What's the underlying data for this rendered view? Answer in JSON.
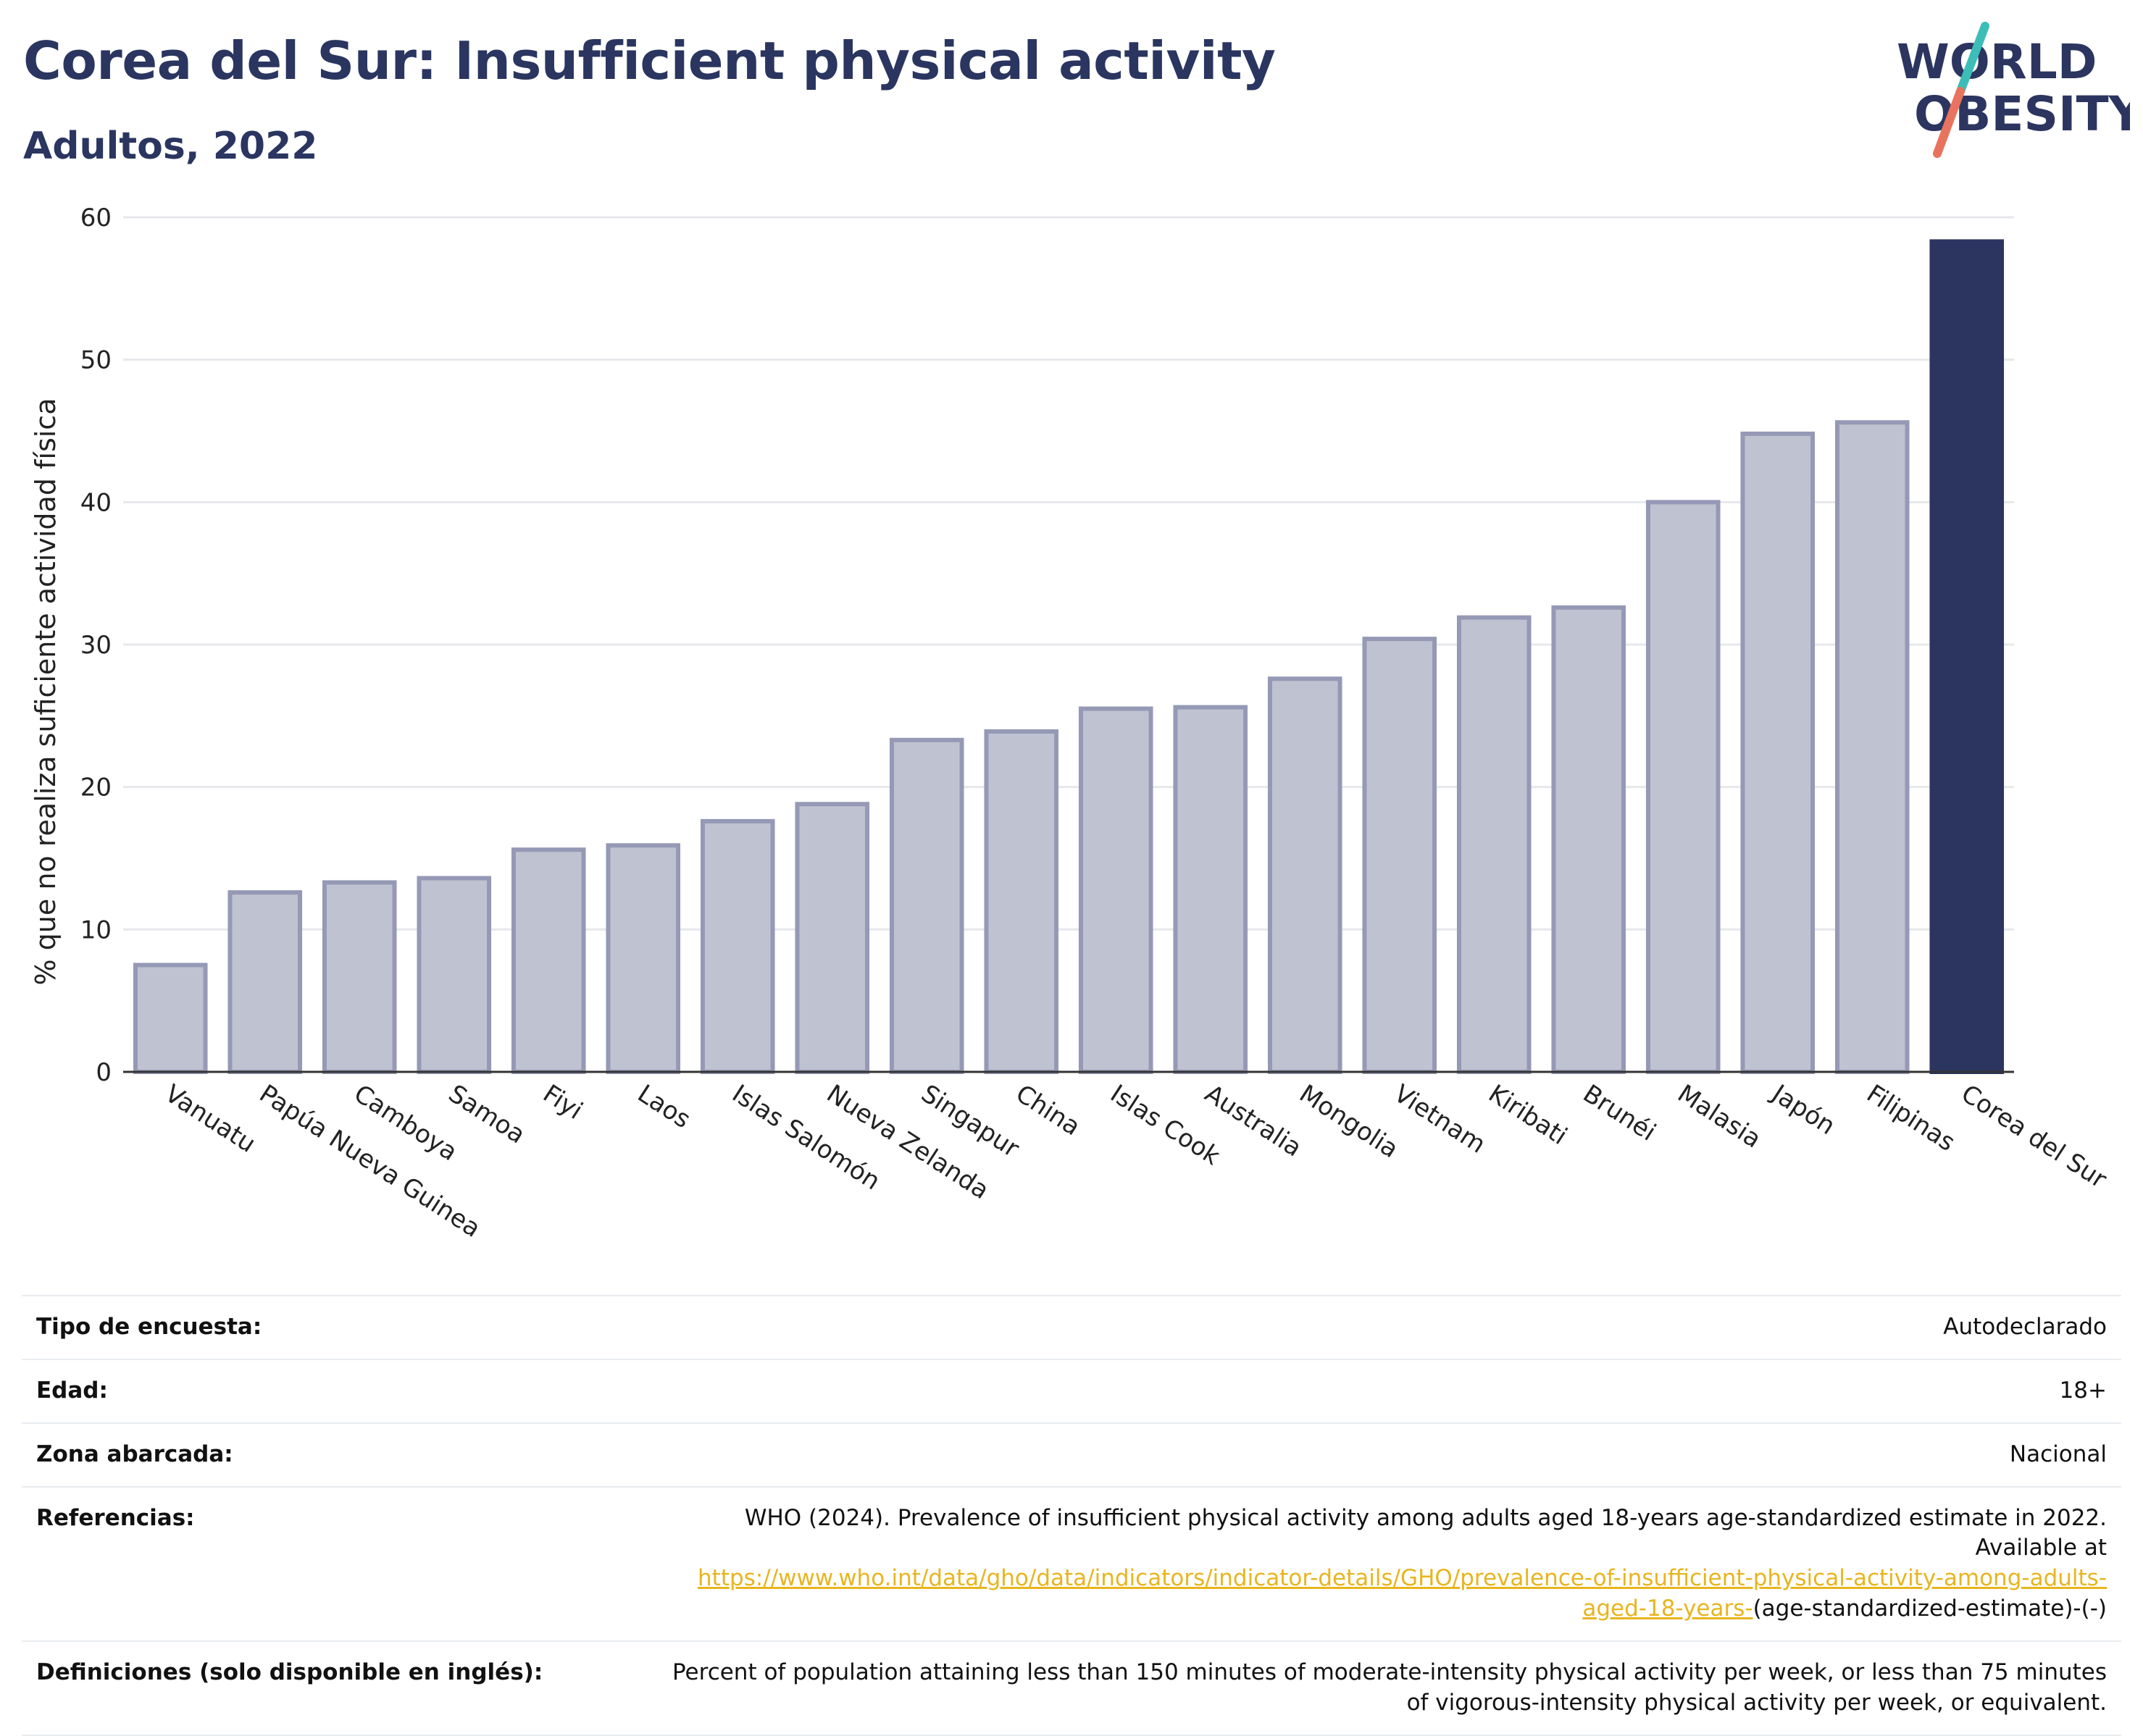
{
  "header": {
    "title": "Corea del Sur: Insufficient physical activity",
    "subtitle": "Adultos, 2022",
    "logo_line1": "WORLD",
    "logo_line2": "OBESITY"
  },
  "chart_data": {
    "type": "bar",
    "title": "Corea del Sur: Insufficient physical activity",
    "subtitle": "Adultos, 2022",
    "xlabel": "",
    "ylabel": "% que no realiza suficiente actividad física",
    "ylim": [
      0,
      60
    ],
    "yticks": [
      0,
      10,
      20,
      30,
      40,
      50,
      60
    ],
    "grid": true,
    "categories": [
      "Vanuatu",
      "Papúa Nueva Guinea",
      "Camboya",
      "Samoa",
      "Fiyi",
      "Laos",
      "Islas Salomón",
      "Nueva Zelanda",
      "Singapur",
      "China",
      "Islas Cook",
      "Australia",
      "Mongolia",
      "Vietnam",
      "Kiribati",
      "Brunéi",
      "Malasia",
      "Japón",
      "Filipinas",
      "Corea del Sur"
    ],
    "values": [
      7.5,
      12.6,
      13.3,
      13.6,
      15.6,
      15.9,
      17.6,
      18.8,
      23.3,
      23.9,
      25.5,
      25.6,
      27.6,
      30.4,
      31.9,
      32.6,
      40.0,
      44.8,
      45.6,
      58.3
    ],
    "highlight": "Corea del Sur",
    "colors": {
      "bar": "#bfc2d0",
      "bar_border": "#9599b5",
      "highlight": "#2b3560",
      "grid": "#e6e8ec",
      "axis": "#333333"
    }
  },
  "info": {
    "rows": [
      {
        "label": "Tipo de encuesta:",
        "value": "Autodeclarado"
      },
      {
        "label": "Edad:",
        "value": "18+"
      },
      {
        "label": "Zona abarcada:",
        "value": "Nacional"
      }
    ],
    "references_label": "Referencias:",
    "references_text": "WHO (2024). Prevalence of insufficient physical activity among adults aged 18-years age-standardized estimate in 2022. Available at",
    "references_link": "https://www.who.int/data/gho/data/indicators/indicator-details/GHO/prevalence-of-insufficient-physical-activity-among-adults-aged-18-years-",
    "references_suffix": "(age-standardized-estimate)-(-)",
    "definitions_label": "Definiciones (solo disponible en inglés):",
    "definitions_text": "Percent of population attaining less than 150 minutes of moderate-intensity physical activity per week, or less than 75 minutes of vigorous-intensity physical activity per week, or equivalent."
  }
}
